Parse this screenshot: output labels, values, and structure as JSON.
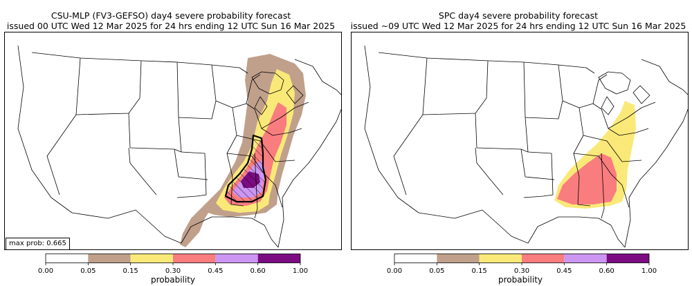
{
  "panels": [
    {
      "title_line1": "CSU-MLP (FV3-GEFSO) day4 severe probability forecast",
      "title_line2": "issued 00 UTC Wed 12 Mar 2025 for 24 hrs ending 12 UTC Sun 16 Mar 2025",
      "annotation": "max prob: 0.665"
    },
    {
      "title_line1": "SPC day4 severe probability forecast",
      "title_line2": "issued ~09 UTC Wed 12 Mar 2025 for 24 hrs ending 12 UTC Sun 16 Mar 2025"
    }
  ],
  "colorbar": {
    "label": "probability",
    "ticks": [
      "0.00",
      "0.05",
      "0.15",
      "0.30",
      "0.45",
      "0.60",
      "1.00"
    ],
    "colors": [
      "#ffffff",
      "#c0a08b",
      "#fae978",
      "#f97d7f",
      "#cc96f2",
      "#7b0c82"
    ]
  },
  "colors": {
    "prob_05": "#c0a08b",
    "prob_15": "#fae978",
    "prob_30": "#f97d7f",
    "prob_45": "#cc96f2",
    "prob_60": "#7b0c82"
  }
}
